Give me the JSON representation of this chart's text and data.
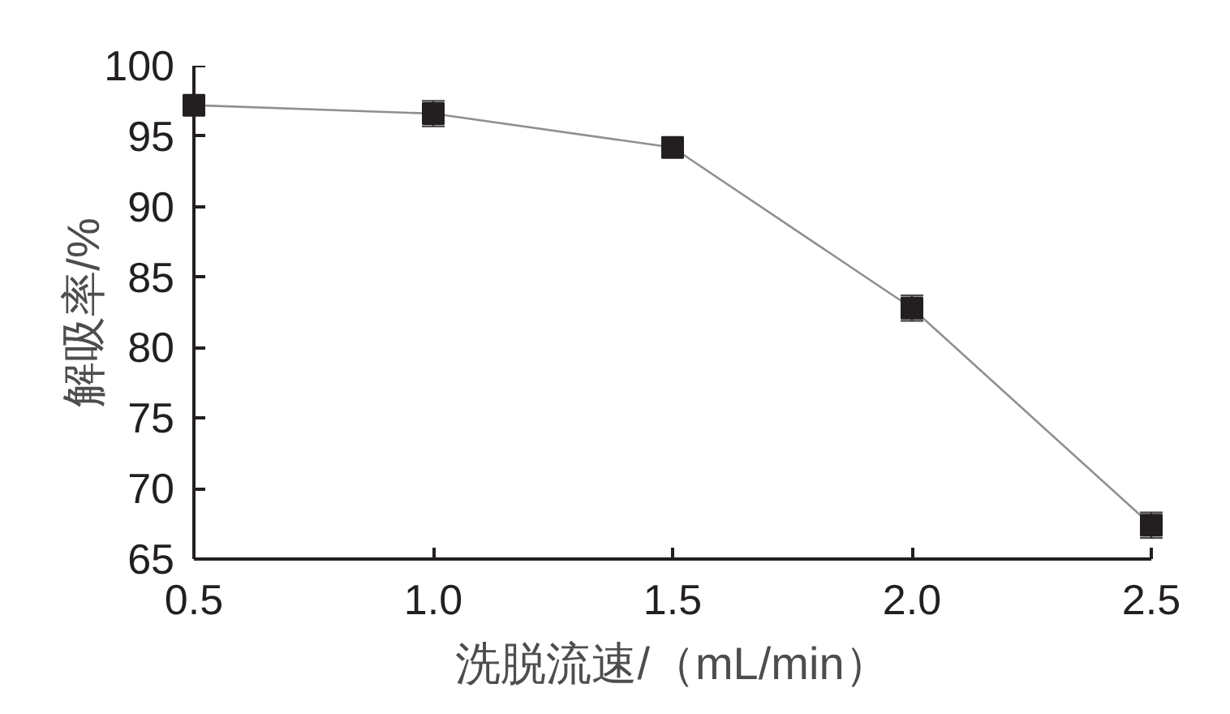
{
  "chart_data": {
    "type": "line",
    "xlabel": "洗脱流速/（mL/min）",
    "ylabel": "解吸率/%",
    "x": [
      0.5,
      1.0,
      1.5,
      2.0,
      2.5
    ],
    "series": [
      {
        "color": "#231f20",
        "values": [
          97.2,
          96.6,
          94.2,
          82.8,
          67.4
        ],
        "errors": [
          0.5,
          0.9,
          0.7,
          0.9,
          0.9
        ]
      }
    ],
    "xlim": [
      0.5,
      2.5
    ],
    "ylim": [
      65,
      100
    ],
    "xticks": [
      0.5,
      {
        "value": 1,
        "label": "1.0"
      },
      1.5,
      {
        "value": 2,
        "label": "2.0"
      },
      2.5
    ],
    "yticks": [
      65,
      70,
      75,
      80,
      85,
      90,
      95,
      100
    ],
    "marker": "square",
    "line_style": "solid",
    "grid": false
  }
}
